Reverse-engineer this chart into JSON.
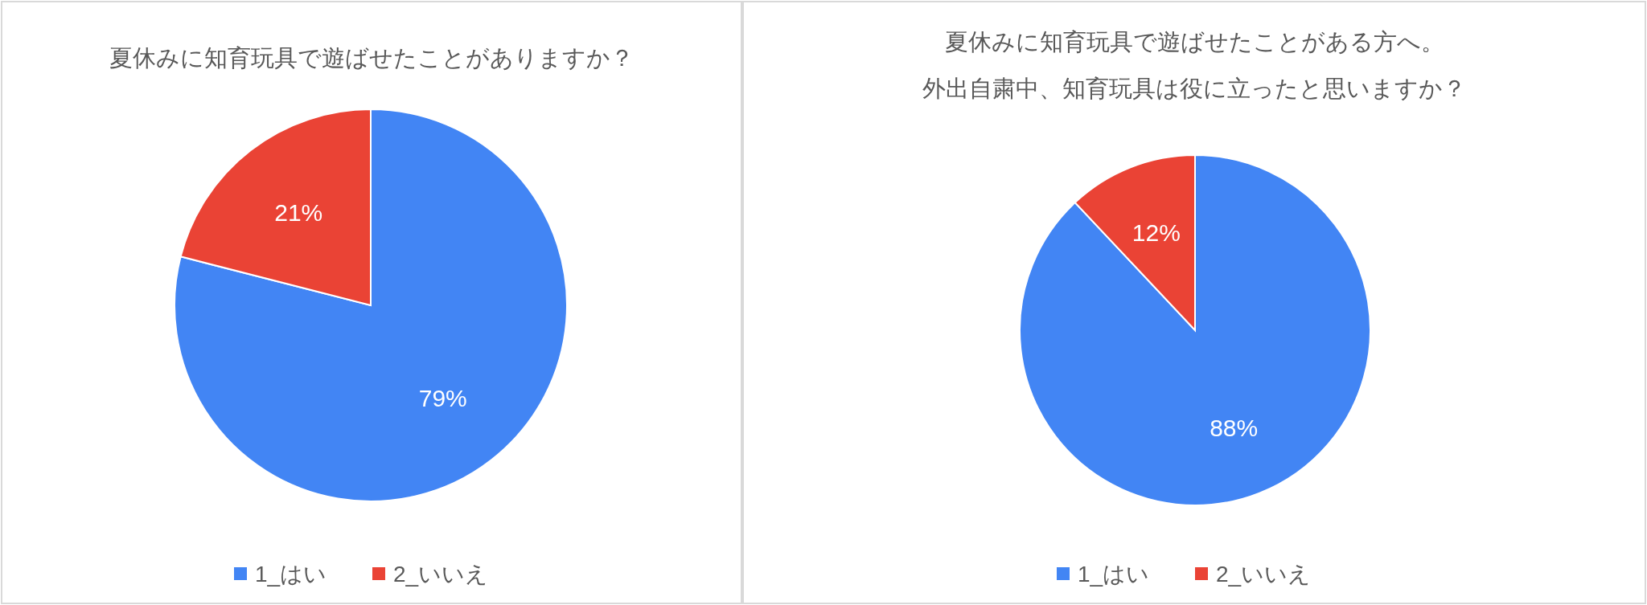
{
  "chart_data": [
    {
      "type": "pie",
      "title": "夏休みに知育玩具で遊ばせたことがありますか？",
      "categories": [
        "1_はい",
        "2_いいえ"
      ],
      "values": [
        79,
        21
      ],
      "colors": [
        "#4285f4",
        "#ea4335"
      ],
      "value_labels": [
        "79%",
        "21%"
      ],
      "legend": "bottom"
    },
    {
      "type": "pie",
      "title": "夏休みに知育玩具で遊ばせたことがある方へ。外出自粛中、知育玩具は役に立ったと思いますか？",
      "categories": [
        "1_はい",
        "2_いいえ"
      ],
      "values": [
        88,
        12
      ],
      "colors": [
        "#4285f4",
        "#ea4335"
      ],
      "value_labels": [
        "88%",
        "12%"
      ],
      "legend": "bottom"
    }
  ]
}
